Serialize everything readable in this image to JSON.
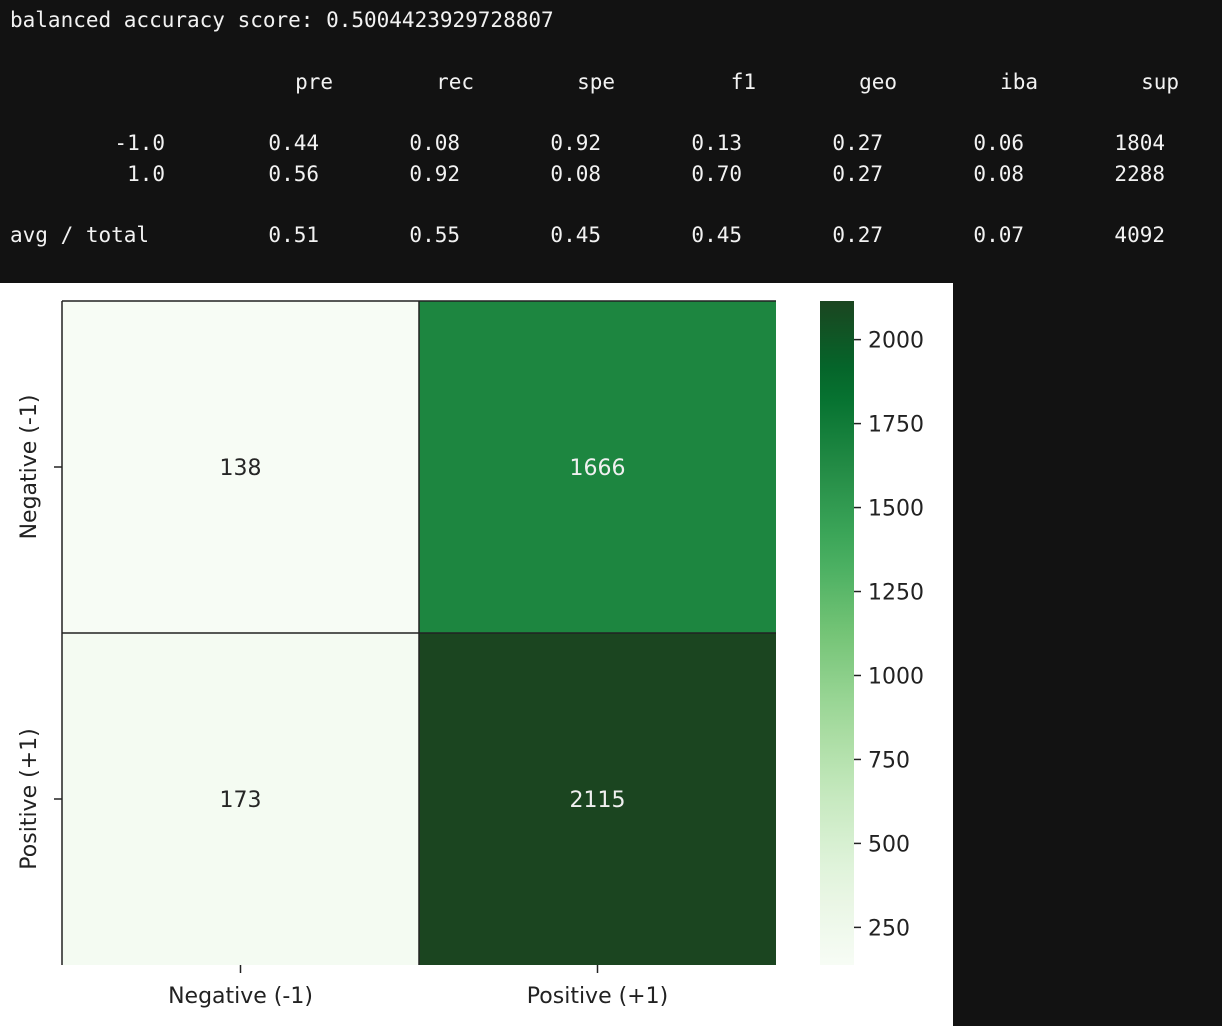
{
  "console": {
    "score_line": "balanced accuracy score: 0.5004423929728807",
    "report": {
      "headers": [
        "pre",
        "rec",
        "spe",
        "f1",
        "geo",
        "iba",
        "sup"
      ],
      "rows": [
        {
          "label": "-1.0",
          "values": [
            "0.44",
            "0.08",
            "0.92",
            "0.13",
            "0.27",
            "0.06",
            "1804"
          ]
        },
        {
          "label": "1.0",
          "values": [
            "0.56",
            "0.92",
            "0.08",
            "0.70",
            "0.27",
            "0.08",
            "2288"
          ]
        }
      ],
      "total": {
        "label": "avg / total",
        "values": [
          "0.51",
          "0.55",
          "0.45",
          "0.45",
          "0.27",
          "0.07",
          "4092"
        ]
      }
    }
  },
  "chart_data": {
    "type": "heatmap",
    "x_categories": [
      "Negative (-1)",
      "Positive (+1)"
    ],
    "y_categories": [
      "Negative (-1)",
      "Positive (+1)"
    ],
    "values": [
      [
        138,
        1666
      ],
      [
        173,
        2115
      ]
    ],
    "annotations": [
      [
        "138",
        "1666"
      ],
      [
        "173",
        "2115"
      ]
    ],
    "colormap": "Greens",
    "color_low": "#f7fcf5",
    "color_high": "#1b4520",
    "color_range": [
      138,
      2115
    ],
    "colorbar_ticks": [
      250,
      500,
      750,
      1000,
      1250,
      1500,
      1750,
      2000
    ],
    "colorbar_tick_labels": [
      "250",
      "500",
      "750",
      "1000",
      "1250",
      "1500",
      "1750",
      "2000"
    ],
    "cell_lines": true,
    "line_color": "#222222"
  }
}
